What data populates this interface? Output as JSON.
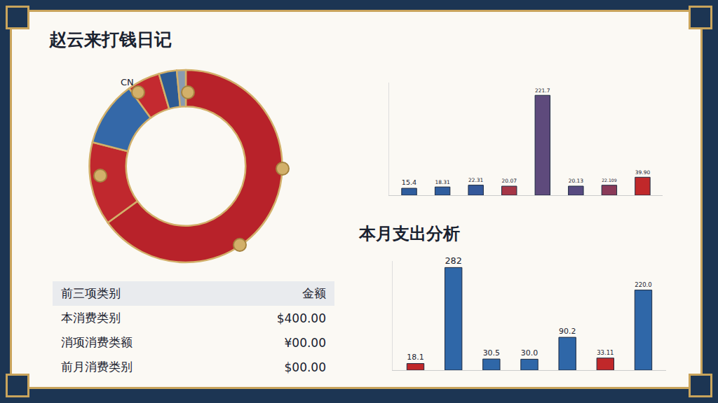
{
  "title": "赵云来打钱日记",
  "chart_data": [
    {
      "type": "pie",
      "annotation": "CN",
      "values": [
        65,
        14,
        11,
        5.5,
        3,
        1.5
      ],
      "colors": [
        "#b8222a",
        "#c0282e",
        "#3468a8",
        "#c42a30",
        "#2d5a92",
        "#8a9bb0"
      ]
    },
    {
      "type": "bar",
      "categories": [
        null,
        null,
        null,
        null,
        null,
        null,
        null,
        null
      ],
      "values": [
        15.4,
        18.31,
        22.31,
        20.07,
        221.7,
        20.13,
        22.109,
        39.9
      ],
      "value_labels": [
        "15.4",
        "18.31",
        "22.31",
        "20.07",
        "221.7",
        "20.13",
        "22.109",
        "39.90"
      ],
      "colors": [
        "#2f5d9e",
        "#2f5d9e",
        "#34589a",
        "#a63646",
        "#5e4a7c",
        "#574a80",
        "#8a3a58",
        "#c0282a"
      ],
      "ylim": [
        0,
        250
      ],
      "data_labels": true,
      "tick_labels": false
    },
    {
      "type": "bar",
      "title": "本月支出分析",
      "categories": [
        null,
        null,
        null,
        null,
        null,
        null,
        null
      ],
      "values": [
        18.1,
        282,
        30.5,
        30,
        90.2,
        33.11,
        220
      ],
      "value_labels": [
        "18.1",
        "282",
        "30.5",
        "30.0",
        "90.2",
        "33.11",
        "220.0"
      ],
      "colors": [
        "#c0282a",
        "#2f67a8",
        "#2f67a8",
        "#2f67a8",
        "#2f67a8",
        "#c0282a",
        "#2f67a8"
      ],
      "ylim": [
        0,
        300
      ],
      "data_labels": true,
      "tick_labels": false
    }
  ],
  "table": {
    "header": [
      "前三项类别",
      "金额"
    ],
    "rows": [
      [
        "本消费类别",
        "$400.00"
      ],
      [
        "消项消费类额",
        "¥00.00"
      ],
      [
        "前月消费类别",
        "$00.00"
      ]
    ]
  }
}
